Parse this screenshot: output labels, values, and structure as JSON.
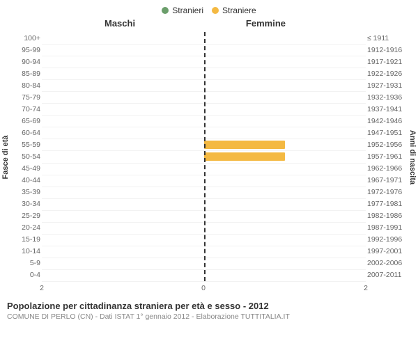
{
  "legend": {
    "items": [
      {
        "label": "Stranieri",
        "color": "#6b9e6b"
      },
      {
        "label": "Straniere",
        "color": "#f4b942"
      }
    ]
  },
  "chart": {
    "type": "population-pyramid",
    "left_panel_title": "Maschi",
    "right_panel_title": "Femmine",
    "y_axis_left_title": "Fasce di età",
    "y_axis_right_title": "Anni di nascita",
    "x_max": 2,
    "x_ticks_left": [
      "2",
      "0"
    ],
    "x_ticks_right": [
      "0",
      "2"
    ],
    "grid_color": "#f2f2f2",
    "center_line_color": "#333333",
    "background_color": "#ffffff",
    "bar_color_male": "#6b9e6b",
    "bar_color_female": "#f4b942",
    "rows": [
      {
        "age": "100+",
        "birth": "≤ 1911",
        "m": 0,
        "f": 0
      },
      {
        "age": "95-99",
        "birth": "1912-1916",
        "m": 0,
        "f": 0
      },
      {
        "age": "90-94",
        "birth": "1917-1921",
        "m": 0,
        "f": 0
      },
      {
        "age": "85-89",
        "birth": "1922-1926",
        "m": 0,
        "f": 0
      },
      {
        "age": "80-84",
        "birth": "1927-1931",
        "m": 0,
        "f": 0
      },
      {
        "age": "75-79",
        "birth": "1932-1936",
        "m": 0,
        "f": 0
      },
      {
        "age": "70-74",
        "birth": "1937-1941",
        "m": 0,
        "f": 0
      },
      {
        "age": "65-69",
        "birth": "1942-1946",
        "m": 0,
        "f": 0
      },
      {
        "age": "60-64",
        "birth": "1947-1951",
        "m": 0,
        "f": 0
      },
      {
        "age": "55-59",
        "birth": "1952-1956",
        "m": 0,
        "f": 1
      },
      {
        "age": "50-54",
        "birth": "1957-1961",
        "m": 0,
        "f": 1
      },
      {
        "age": "45-49",
        "birth": "1962-1966",
        "m": 0,
        "f": 0
      },
      {
        "age": "40-44",
        "birth": "1967-1971",
        "m": 0,
        "f": 0
      },
      {
        "age": "35-39",
        "birth": "1972-1976",
        "m": 0,
        "f": 0
      },
      {
        "age": "30-34",
        "birth": "1977-1981",
        "m": 0,
        "f": 0
      },
      {
        "age": "25-29",
        "birth": "1982-1986",
        "m": 0,
        "f": 0
      },
      {
        "age": "20-24",
        "birth": "1987-1991",
        "m": 0,
        "f": 0
      },
      {
        "age": "15-19",
        "birth": "1992-1996",
        "m": 0,
        "f": 0
      },
      {
        "age": "10-14",
        "birth": "1997-2001",
        "m": 0,
        "f": 0
      },
      {
        "age": "5-9",
        "birth": "2002-2006",
        "m": 0,
        "f": 0
      },
      {
        "age": "0-4",
        "birth": "2007-2011",
        "m": 0,
        "f": 0
      }
    ]
  },
  "footer": {
    "title": "Popolazione per cittadinanza straniera per età e sesso - 2012",
    "subtitle": "COMUNE DI PERLO (CN) - Dati ISTAT 1° gennaio 2012 - Elaborazione TUTTITALIA.IT"
  }
}
